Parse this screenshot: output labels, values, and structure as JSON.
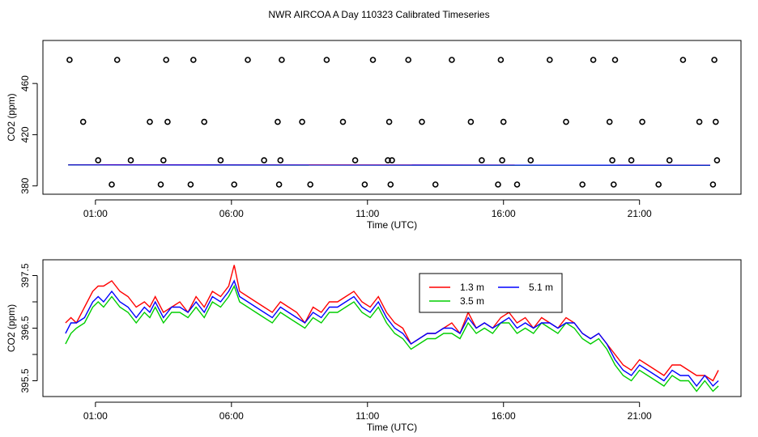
{
  "figure": {
    "title": "NWR AIRCOA A  Day 110323  Calibrated Timeseries"
  },
  "chart_data": [
    {
      "type": "scatter",
      "title": "",
      "xlabel": "Time (UTC)",
      "ylabel": "CO2 (ppm)",
      "xlim": [
        -0.93,
        24.73
      ],
      "ylim": [
        373.5,
        493.6
      ],
      "xticks": [
        1,
        6,
        11,
        16,
        21
      ],
      "xtick_labels": [
        "01:00",
        "06:00",
        "11:00",
        "16:00",
        "21:00"
      ],
      "yticks": [
        380,
        420,
        460
      ],
      "ytick_labels": [
        "380",
        "420",
        "460"
      ],
      "flat_series": [
        {
          "name": "1.3 m",
          "color": "#ff0000",
          "x": [
            0,
            23.6
          ],
          "y": [
            396.5,
            396.2
          ]
        },
        {
          "name": "3.5 m",
          "color": "#00cd00",
          "x": [
            0,
            23.6
          ],
          "y": [
            396.3,
            396.0
          ]
        },
        {
          "name": "5.1 m",
          "color": "#0000ff",
          "x": [
            0,
            23.6
          ],
          "y": [
            396.4,
            396.1
          ]
        }
      ],
      "points_x": [
        0.05,
        0.55,
        1.1,
        1.6,
        1.8,
        2.3,
        3.0,
        3.4,
        3.5,
        3.6,
        3.65,
        4.5,
        4.6,
        5.0,
        5.6,
        6.1,
        6.6,
        7.2,
        7.7,
        7.75,
        7.8,
        7.85,
        8.6,
        8.9,
        9.5,
        10.1,
        10.55,
        10.9,
        11.2,
        11.75,
        11.8,
        11.85,
        11.9,
        12.5,
        13.0,
        13.5,
        14.1,
        14.8,
        15.2,
        15.8,
        15.9,
        15.95,
        16.0,
        16.5,
        17.0,
        17.7,
        18.3,
        18.9,
        19.3,
        19.9,
        20.0,
        20.05,
        20.1,
        20.7,
        21.1,
        21.7,
        22.1,
        22.6,
        23.2,
        23.7,
        23.75,
        23.8,
        23.85
      ]
    },
    {
      "type": "line",
      "title": "",
      "xlabel": "Time (UTC)",
      "ylabel": "CO2 (ppm)",
      "xlim": [
        -0.93,
        24.73
      ],
      "ylim": [
        395.2,
        397.8
      ],
      "xticks": [
        1,
        6,
        11,
        16,
        21
      ],
      "xtick_labels": [
        "01:00",
        "06:00",
        "11:00",
        "16:00",
        "21:00"
      ],
      "yticks": [
        395.5,
        396.5,
        397.5
      ],
      "ytick_labels": [
        "395.5",
        "396.5",
        "397.5"
      ],
      "minor_yticks": [
        396.0,
        397.0
      ],
      "legend": {
        "placement": "top-center",
        "entries": [
          "1.3 m",
          "5.1 m",
          "3.5 m"
        ]
      },
      "series": [
        {
          "name": "1.3 m",
          "color": "#ff0000",
          "x": [
            -0.1,
            0.1,
            0.3,
            0.6,
            0.9,
            1.1,
            1.3,
            1.6,
            1.9,
            2.2,
            2.5,
            2.8,
            3.0,
            3.2,
            3.5,
            3.8,
            4.1,
            4.4,
            4.7,
            5.0,
            5.3,
            5.6,
            5.9,
            6.1,
            6.3,
            6.6,
            6.9,
            7.2,
            7.5,
            7.8,
            8.1,
            8.4,
            8.7,
            9.0,
            9.3,
            9.6,
            9.9,
            10.2,
            10.5,
            10.8,
            11.1,
            11.4,
            11.7,
            12.0,
            12.3,
            12.6,
            12.9,
            13.2,
            13.5,
            13.8,
            14.1,
            14.4,
            14.7,
            15.0,
            15.3,
            15.6,
            15.9,
            16.2,
            16.5,
            16.8,
            17.1,
            17.4,
            17.7,
            18.0,
            18.3,
            18.6,
            18.9,
            19.2,
            19.5,
            19.8,
            20.1,
            20.4,
            20.7,
            21.0,
            21.3,
            21.6,
            21.9,
            22.2,
            22.5,
            22.8,
            23.1,
            23.4,
            23.7,
            23.9
          ],
          "y": [
            396.6,
            396.7,
            396.6,
            396.9,
            397.2,
            397.3,
            397.3,
            397.4,
            397.2,
            397.1,
            396.9,
            397.0,
            396.9,
            397.1,
            396.8,
            396.9,
            397.0,
            396.8,
            397.1,
            396.9,
            397.2,
            397.1,
            397.3,
            397.7,
            397.2,
            397.1,
            397.0,
            396.9,
            396.8,
            397.0,
            396.9,
            396.8,
            396.6,
            396.9,
            396.8,
            397.0,
            397.0,
            397.1,
            397.2,
            397.0,
            396.9,
            397.1,
            396.8,
            396.6,
            396.5,
            396.2,
            396.3,
            396.4,
            396.4,
            396.5,
            396.6,
            396.4,
            396.8,
            396.5,
            396.6,
            396.5,
            396.7,
            396.8,
            396.6,
            396.7,
            396.5,
            396.7,
            396.6,
            396.5,
            396.7,
            396.6,
            396.4,
            396.3,
            396.4,
            396.2,
            396.0,
            395.8,
            395.7,
            395.9,
            395.8,
            395.7,
            395.6,
            395.8,
            395.8,
            395.7,
            395.6,
            395.6,
            395.5,
            395.7
          ]
        },
        {
          "name": "3.5 m",
          "color": "#00cd00",
          "x": [
            -0.1,
            0.1,
            0.3,
            0.6,
            0.9,
            1.1,
            1.3,
            1.6,
            1.9,
            2.2,
            2.5,
            2.8,
            3.0,
            3.2,
            3.5,
            3.8,
            4.1,
            4.4,
            4.7,
            5.0,
            5.3,
            5.6,
            5.9,
            6.1,
            6.3,
            6.6,
            6.9,
            7.2,
            7.5,
            7.8,
            8.1,
            8.4,
            8.7,
            9.0,
            9.3,
            9.6,
            9.9,
            10.2,
            10.5,
            10.8,
            11.1,
            11.4,
            11.7,
            12.0,
            12.3,
            12.6,
            12.9,
            13.2,
            13.5,
            13.8,
            14.1,
            14.4,
            14.7,
            15.0,
            15.3,
            15.6,
            15.9,
            16.2,
            16.5,
            16.8,
            17.1,
            17.4,
            17.7,
            18.0,
            18.3,
            18.6,
            18.9,
            19.2,
            19.5,
            19.8,
            20.1,
            20.4,
            20.7,
            21.0,
            21.3,
            21.6,
            21.9,
            22.2,
            22.5,
            22.8,
            23.1,
            23.4,
            23.7,
            23.9
          ],
          "y": [
            396.2,
            396.4,
            396.5,
            396.6,
            396.9,
            397.0,
            396.9,
            397.1,
            396.9,
            396.8,
            396.6,
            396.8,
            396.7,
            396.9,
            396.6,
            396.8,
            396.8,
            396.7,
            396.9,
            396.7,
            397.0,
            396.9,
            397.1,
            397.3,
            397.0,
            396.9,
            396.8,
            396.7,
            396.6,
            396.8,
            396.7,
            396.6,
            396.5,
            396.7,
            396.6,
            396.8,
            396.8,
            396.9,
            397.0,
            396.8,
            396.7,
            396.9,
            396.6,
            396.4,
            396.3,
            396.1,
            396.2,
            396.3,
            396.3,
            396.4,
            396.4,
            396.3,
            396.6,
            396.4,
            396.5,
            396.4,
            396.6,
            396.6,
            396.4,
            396.5,
            396.4,
            396.6,
            396.5,
            396.4,
            396.6,
            396.5,
            396.3,
            396.2,
            396.3,
            396.1,
            395.8,
            395.6,
            395.5,
            395.7,
            395.6,
            395.5,
            395.4,
            395.6,
            395.5,
            395.5,
            395.3,
            395.5,
            395.3,
            395.4
          ]
        },
        {
          "name": "5.1 m",
          "color": "#0000ff",
          "x": [
            -0.1,
            0.1,
            0.3,
            0.6,
            0.9,
            1.1,
            1.3,
            1.6,
            1.9,
            2.2,
            2.5,
            2.8,
            3.0,
            3.2,
            3.5,
            3.8,
            4.1,
            4.4,
            4.7,
            5.0,
            5.3,
            5.6,
            5.9,
            6.1,
            6.3,
            6.6,
            6.9,
            7.2,
            7.5,
            7.8,
            8.1,
            8.4,
            8.7,
            9.0,
            9.3,
            9.6,
            9.9,
            10.2,
            10.5,
            10.8,
            11.1,
            11.4,
            11.7,
            12.0,
            12.3,
            12.6,
            12.9,
            13.2,
            13.5,
            13.8,
            14.1,
            14.4,
            14.7,
            15.0,
            15.3,
            15.6,
            15.9,
            16.2,
            16.5,
            16.8,
            17.1,
            17.4,
            17.7,
            18.0,
            18.3,
            18.6,
            18.9,
            19.2,
            19.5,
            19.8,
            20.1,
            20.4,
            20.7,
            21.0,
            21.3,
            21.6,
            21.9,
            22.2,
            22.5,
            22.8,
            23.1,
            23.4,
            23.7,
            23.9
          ],
          "y": [
            396.4,
            396.6,
            396.6,
            396.7,
            397.0,
            397.1,
            397.0,
            397.2,
            397.0,
            396.9,
            396.7,
            396.9,
            396.8,
            397.0,
            396.7,
            396.9,
            396.9,
            396.8,
            397.0,
            396.8,
            397.1,
            397.0,
            397.2,
            397.4,
            397.1,
            397.0,
            396.9,
            396.8,
            396.7,
            396.9,
            396.8,
            396.7,
            396.6,
            396.8,
            396.7,
            396.9,
            396.9,
            397.0,
            397.1,
            396.9,
            396.8,
            397.0,
            396.7,
            396.5,
            396.4,
            396.2,
            396.3,
            396.4,
            396.4,
            396.5,
            396.5,
            396.4,
            396.7,
            396.5,
            396.6,
            396.5,
            396.6,
            396.7,
            396.5,
            396.6,
            396.5,
            396.6,
            396.6,
            396.5,
            396.6,
            396.6,
            396.4,
            396.3,
            396.4,
            396.2,
            395.9,
            395.7,
            395.6,
            395.8,
            395.7,
            395.6,
            395.5,
            395.7,
            395.6,
            395.6,
            395.4,
            395.6,
            395.4,
            395.5
          ]
        }
      ]
    }
  ]
}
